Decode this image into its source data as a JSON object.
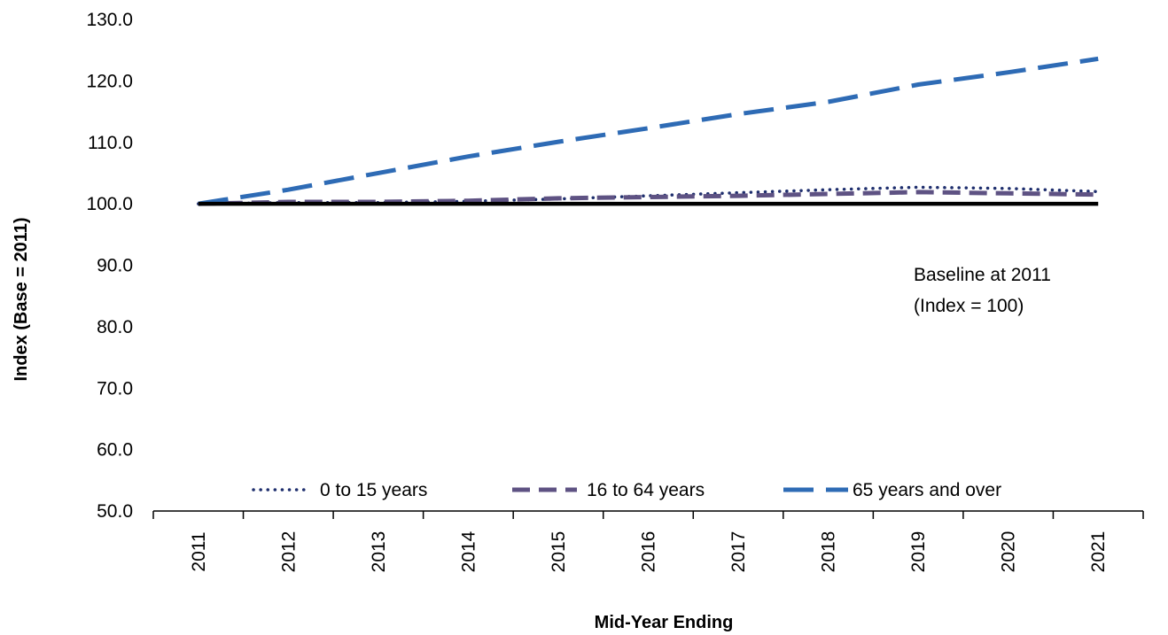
{
  "chart_data": {
    "type": "line",
    "title": "",
    "xlabel": "Mid-Year Ending",
    "ylabel": "Index (Base = 2011)",
    "ylim": [
      50,
      130
    ],
    "ytick_step": 10,
    "ytick_labels": [
      "50.0",
      "60.0",
      "70.0",
      "80.0",
      "90.0",
      "100.0",
      "110.0",
      "120.0",
      "130.0"
    ],
    "categories": [
      "2011",
      "2012",
      "2013",
      "2014",
      "2015",
      "2016",
      "2017",
      "2018",
      "2019",
      "2020",
      "2021"
    ],
    "grid": false,
    "legend_position": "bottom",
    "series": [
      {
        "name": "0 to 15 years",
        "values": [
          100.0,
          100.2,
          100.2,
          100.4,
          100.8,
          101.3,
          101.8,
          102.3,
          102.7,
          102.5,
          102.0
        ],
        "color": "#1f2f6e",
        "style": "dotted"
      },
      {
        "name": "16 to 64 years",
        "values": [
          100.0,
          100.3,
          100.3,
          100.5,
          100.9,
          101.1,
          101.3,
          101.6,
          101.9,
          101.7,
          101.5
        ],
        "color": "#5e5283",
        "style": "dashed"
      },
      {
        "name": "65 years and over",
        "values": [
          100.0,
          102.3,
          105.0,
          107.7,
          110.1,
          112.3,
          114.6,
          116.6,
          119.4,
          121.4,
          123.6
        ],
        "color": "#2e6bb5",
        "style": "long-dash"
      }
    ],
    "baseline": {
      "value": 100,
      "color": "#000000"
    },
    "annotation": {
      "line1": "Baseline at 2011",
      "line2": "(Index = 100)"
    }
  }
}
